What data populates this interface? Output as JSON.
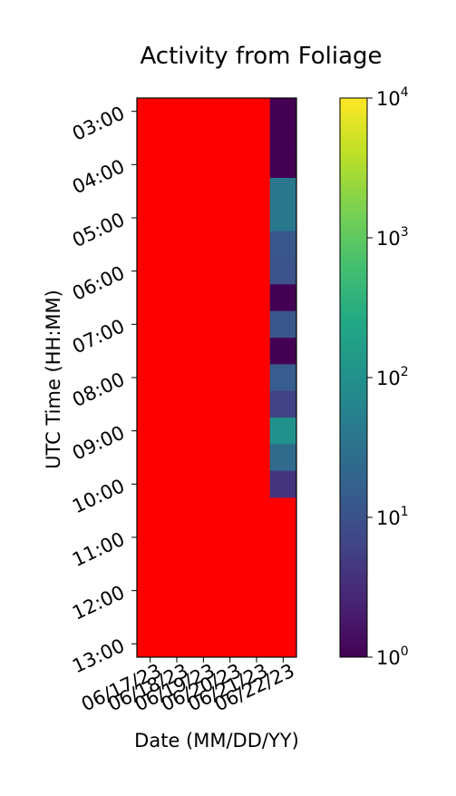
{
  "chart_data": {
    "type": "heatmap",
    "title": "Activity from Foliage",
    "xlabel": "Date (MM/DD/YY)",
    "ylabel": "UTC Time (HH:MM)",
    "x_categories": [
      "06/17/23",
      "06/18/23",
      "06/19/23",
      "06/20/23",
      "06/21/23",
      "06/22/23"
    ],
    "y_tick_labels": [
      "03:00",
      "04:00",
      "05:00",
      "06:00",
      "07:00",
      "08:00",
      "09:00",
      "10:00",
      "11:00",
      "12:00",
      "13:00"
    ],
    "y_range_hours": [
      3,
      13.5
    ],
    "cell_minutes": 30,
    "missing_color": "#ff0000",
    "colormap": "viridis",
    "colorbar": {
      "scale": "log",
      "range": [
        1,
        10000
      ],
      "ticks": [
        {
          "base": "10",
          "exp": "0",
          "value": 1
        },
        {
          "base": "10",
          "exp": "1",
          "value": 10
        },
        {
          "base": "10",
          "exp": "2",
          "value": 100
        },
        {
          "base": "10",
          "exp": "3",
          "value": 1000
        },
        {
          "base": "10",
          "exp": "4",
          "value": 10000
        }
      ]
    },
    "series": [
      {
        "date": "06/22/23",
        "cells": [
          {
            "start": "03:00",
            "value": 1
          },
          {
            "start": "03:30",
            "value": 1
          },
          {
            "start": "04:00",
            "value": 1
          },
          {
            "start": "04:30",
            "value": 40
          },
          {
            "start": "05:00",
            "value": 40
          },
          {
            "start": "05:30",
            "value": 12
          },
          {
            "start": "06:00",
            "value": 10
          },
          {
            "start": "06:30",
            "value": 1
          },
          {
            "start": "07:00",
            "value": 12
          },
          {
            "start": "07:30",
            "value": 1
          },
          {
            "start": "08:00",
            "value": 15
          },
          {
            "start": "08:30",
            "value": 6
          },
          {
            "start": "09:00",
            "value": 100
          },
          {
            "start": "09:30",
            "value": 25
          },
          {
            "start": "10:00",
            "value": 4
          }
        ]
      }
    ]
  }
}
